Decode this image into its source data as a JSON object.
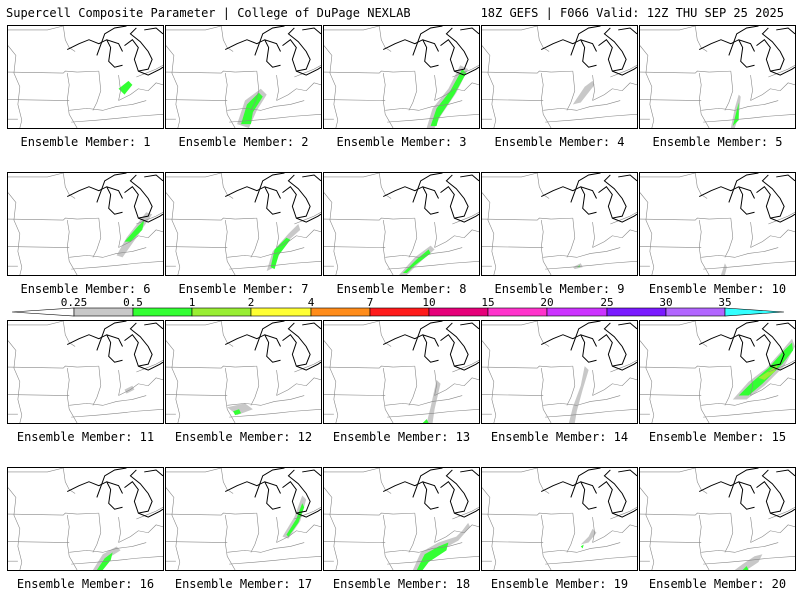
{
  "header": {
    "title_left": "Supercell Composite Parameter | College of DuPage NEXLAB",
    "title_right": "18Z GEFS | F066 Valid: 12Z THU SEP 25 2025"
  },
  "colorbar": {
    "labels": [
      "0.25",
      "0.5",
      "1",
      "2",
      "4",
      "7",
      "10",
      "15",
      "20",
      "25",
      "30",
      "35"
    ],
    "colors": [
      "#ffffff",
      "#c8c8c8",
      "#33ff33",
      "#99ee33",
      "#ffff33",
      "#ff8c1a",
      "#ff1a1a",
      "#e6007a",
      "#ff33cc",
      "#cc33ff",
      "#7a1aff",
      "#b266ff",
      "#33ffff"
    ]
  },
  "panels": [
    {
      "label": "Ensemble Member: 1"
    },
    {
      "label": "Ensemble Member: 2"
    },
    {
      "label": "Ensemble Member: 3"
    },
    {
      "label": "Ensemble Member: 4"
    },
    {
      "label": "Ensemble Member: 5"
    },
    {
      "label": "Ensemble Member: 6"
    },
    {
      "label": "Ensemble Member: 7"
    },
    {
      "label": "Ensemble Member: 8"
    },
    {
      "label": "Ensemble Member: 9"
    },
    {
      "label": "Ensemble Member: 10"
    },
    {
      "label": "Ensemble Member: 11"
    },
    {
      "label": "Ensemble Member: 12"
    },
    {
      "label": "Ensemble Member: 13"
    },
    {
      "label": "Ensemble Member: 14"
    },
    {
      "label": "Ensemble Member: 15"
    },
    {
      "label": "Ensemble Member: 16"
    },
    {
      "label": "Ensemble Member: 17"
    },
    {
      "label": "Ensemble Member: 18"
    },
    {
      "label": "Ensemble Member: 19"
    },
    {
      "label": "Ensemble Member: 20"
    }
  ]
}
